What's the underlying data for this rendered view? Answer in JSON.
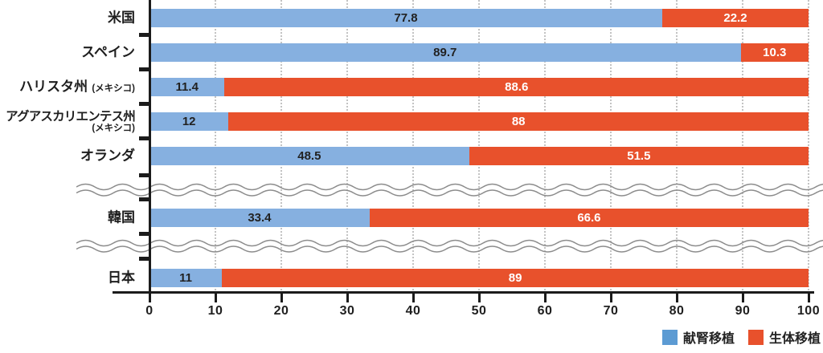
{
  "chart_data": {
    "type": "bar",
    "orientation": "horizontal",
    "stacked": true,
    "title": "",
    "xlabel": "",
    "ylabel": "",
    "xlim": [
      0,
      100
    ],
    "x_ticks": [
      "0",
      "10",
      "20",
      "30",
      "40",
      "50",
      "60",
      "70",
      "80",
      "90",
      "100"
    ],
    "grid": "vertical-dotted",
    "series": [
      {
        "name": "献腎移植",
        "color": "#86b0e0",
        "value_text_color": "#222222"
      },
      {
        "name": "生体移植",
        "color": "#e8512c",
        "value_text_color": "#ffffff"
      }
    ],
    "rows": [
      {
        "type": "bar",
        "label": "米国",
        "paren": "",
        "paren_layout": "none",
        "values": [
          77.8,
          22.2
        ],
        "value_labels": [
          "77.8",
          "22.2"
        ]
      },
      {
        "type": "bar",
        "label": "スペイン",
        "paren": "",
        "paren_layout": "none",
        "values": [
          89.7,
          10.3
        ],
        "value_labels": [
          "89.7",
          "10.3"
        ]
      },
      {
        "type": "bar",
        "label": "ハリスタ州",
        "paren": "(メキシコ)",
        "paren_layout": "inline",
        "values": [
          11.4,
          88.6
        ],
        "value_labels": [
          "11.4",
          "88.6"
        ]
      },
      {
        "type": "bar",
        "label": "アグアスカリエンテス州",
        "paren": "(メキシコ)",
        "paren_layout": "below",
        "values": [
          12,
          88
        ],
        "value_labels": [
          "12",
          "88"
        ]
      },
      {
        "type": "bar",
        "label": "オランダ",
        "paren": "",
        "paren_layout": "none",
        "values": [
          48.5,
          51.5
        ],
        "value_labels": [
          "48.5",
          "51.5"
        ]
      },
      {
        "type": "break"
      },
      {
        "type": "bar",
        "label": "韓国",
        "paren": "",
        "paren_layout": "none",
        "values": [
          33.4,
          66.6
        ],
        "value_labels": [
          "33.4",
          "66.6"
        ]
      },
      {
        "type": "break"
      },
      {
        "type": "bar",
        "label": "日本",
        "paren": "",
        "paren_layout": "none",
        "values": [
          11,
          89
        ],
        "value_labels": [
          "11",
          "89"
        ]
      }
    ],
    "legend": [
      {
        "label": "献腎移植",
        "color": "#5c9bd3"
      },
      {
        "label": "生体移植",
        "color": "#e8512c"
      }
    ],
    "legend_position": "bottom-right"
  },
  "colors": {
    "bar_blue": "#86b0e0",
    "bar_red": "#e8512c",
    "legend_blue": "#5c9bd3",
    "legend_red": "#e8512c",
    "axis": "#1b1b1b",
    "gridline": "#c3c3c3",
    "wave_line": "#8c8c8c",
    "label_text": "#1e1e1e"
  }
}
